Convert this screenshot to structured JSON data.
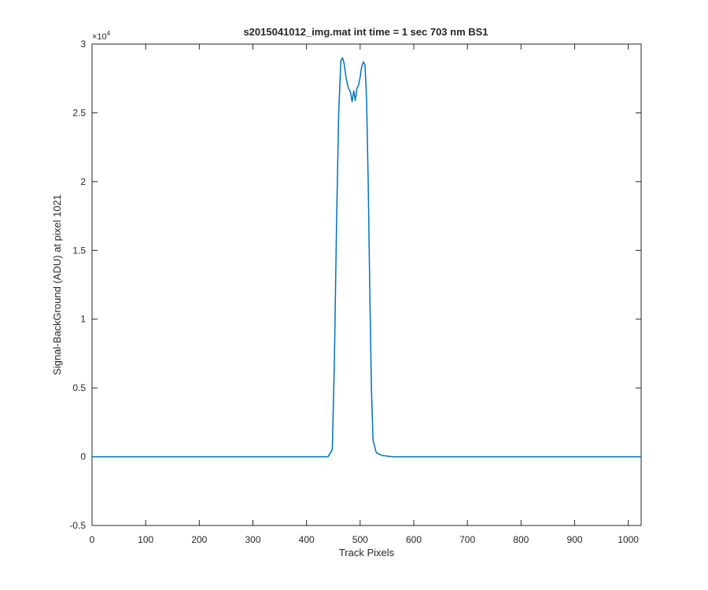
{
  "chart_data": {
    "type": "line",
    "title": "s2015041012_img.mat int time = 1 sec  703 nm BS1",
    "xlabel": "Track Pixels",
    "ylabel": "Signal-BackGround (ADU) at pixel 1021",
    "y_exponent_label": "×10",
    "y_exponent_power": "4",
    "xlim": [
      0,
      1024
    ],
    "ylim": [
      -5000,
      30000
    ],
    "x_ticks": [
      "0",
      "100",
      "200",
      "300",
      "400",
      "500",
      "600",
      "700",
      "800",
      "900",
      "1000"
    ],
    "y_ticks": [
      "-0.5",
      "0",
      "0.5",
      "1",
      "1.5",
      "2",
      "2.5",
      "3"
    ],
    "grid": false,
    "series": [
      {
        "color": "#0072BD",
        "x": [
          0,
          50,
          100,
          150,
          200,
          250,
          300,
          350,
          400,
          440,
          448,
          452,
          456,
          460,
          464,
          467,
          470,
          474,
          478,
          482,
          485,
          488,
          491,
          494,
          497,
          500,
          503,
          506,
          509,
          512,
          515,
          518,
          521,
          524,
          530,
          540,
          560,
          600,
          700,
          800,
          900,
          1024
        ],
        "y": [
          0,
          0,
          0,
          0,
          0,
          0,
          0,
          0,
          0,
          0,
          500,
          7000,
          17000,
          25000,
          28800,
          29000,
          28600,
          27500,
          26800,
          26500,
          25800,
          26600,
          25900,
          26800,
          27000,
          27600,
          28400,
          28700,
          28500,
          26000,
          20000,
          12000,
          5000,
          1200,
          300,
          100,
          0,
          0,
          0,
          0,
          0,
          0
        ]
      }
    ]
  }
}
